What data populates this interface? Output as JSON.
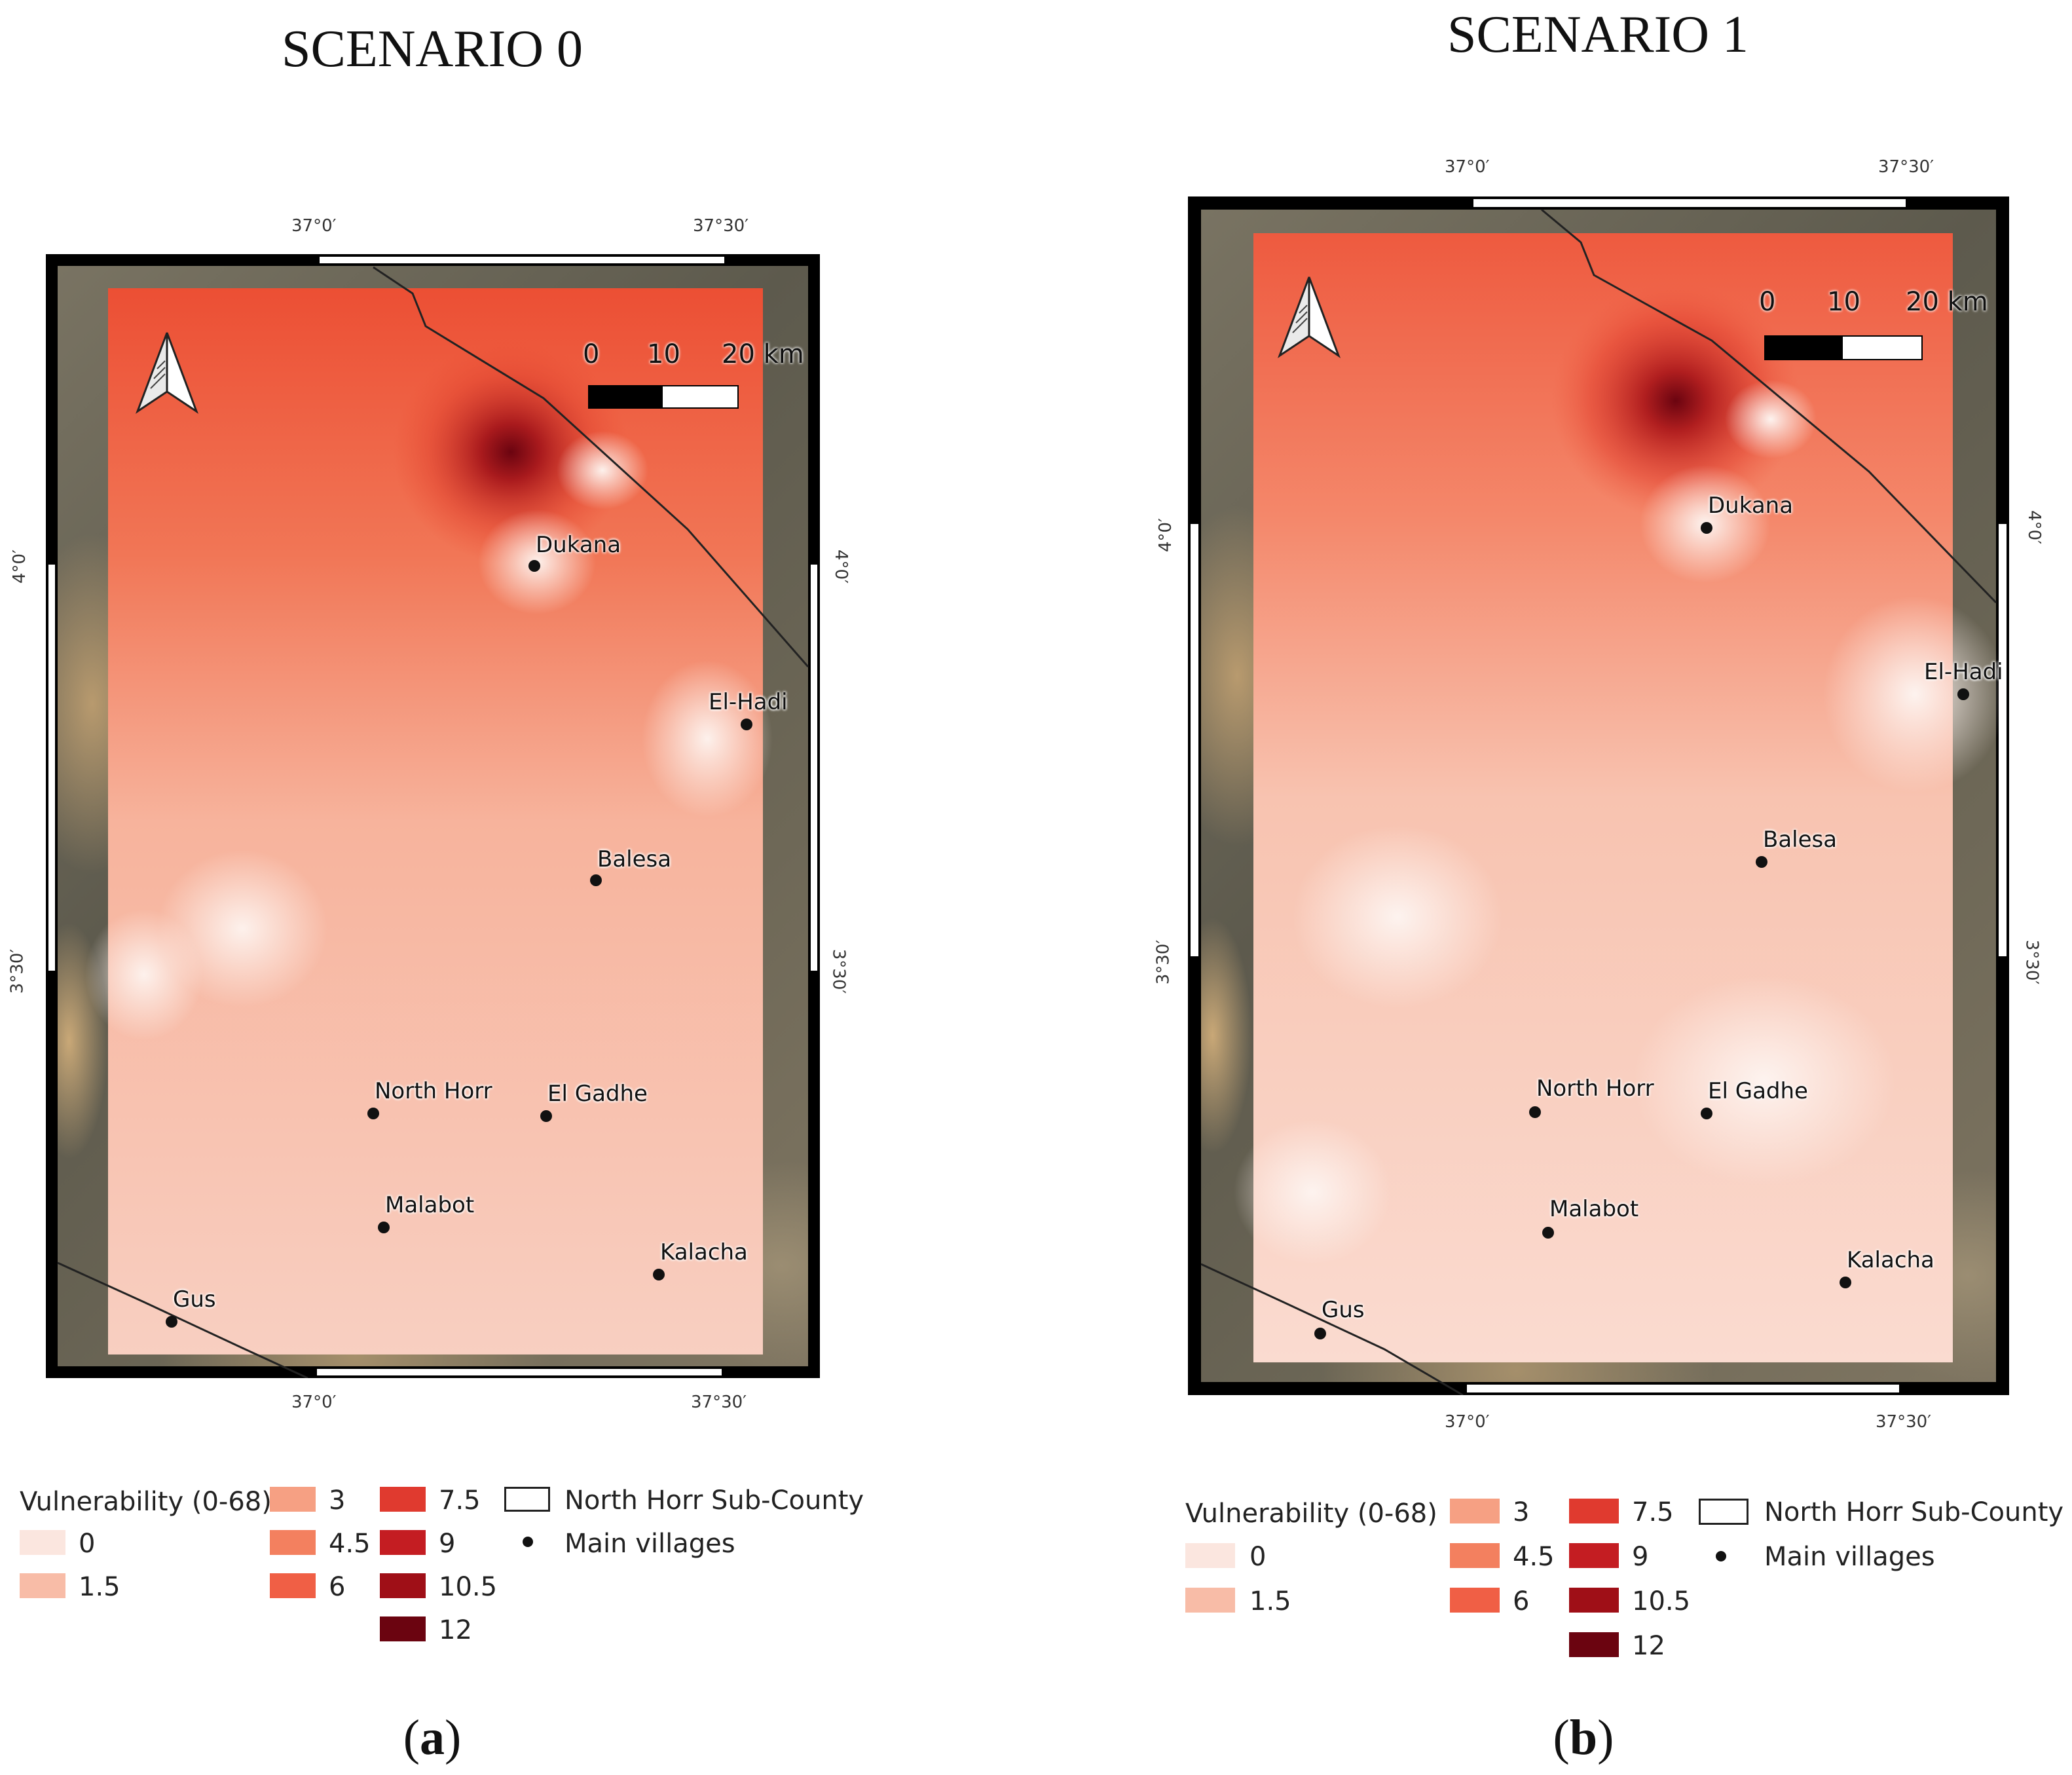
{
  "panels": [
    {
      "title": "SCENARIO 0",
      "caption_letter": "a",
      "coords": {
        "lon_left": "37°0′",
        "lon_right": "37°30′",
        "lat_top": "4°0′",
        "lat_bottom": "3°30′"
      },
      "scalebar": {
        "zero": "0",
        "mid": "10",
        "end": "20 km"
      },
      "villages": [
        "Dukana",
        "El-Hadi",
        "Balesa",
        "North Horr",
        "El Gadhe",
        "Malabot",
        "Kalacha",
        "Gus"
      ]
    },
    {
      "title": "SCENARIO 1",
      "caption_letter": "b",
      "coords": {
        "lon_left": "37°0′",
        "lon_right": "37°30′",
        "lat_top": "4°0′",
        "lat_bottom": "3°30′"
      },
      "scalebar": {
        "zero": "0",
        "mid": "10",
        "end": "20 km"
      },
      "villages": [
        "Dukana",
        "El-Hadi",
        "Balesa",
        "North Horr",
        "El Gadhe",
        "Malabot",
        "Kalacha",
        "Gus"
      ]
    }
  ],
  "legend": {
    "title": "Vulnerability (0-68)",
    "classes": [
      {
        "label": "0",
        "color": "#fbe6df"
      },
      {
        "label": "1.5",
        "color": "#f8bca7"
      },
      {
        "label": "3",
        "color": "#f6a083"
      },
      {
        "label": "4.5",
        "color": "#f3805f"
      },
      {
        "label": "6",
        "color": "#f05f45"
      },
      {
        "label": "7.5",
        "color": "#e03a2f"
      },
      {
        "label": "9",
        "color": "#c41d22"
      },
      {
        "label": "10.5",
        "color": "#9f0f17"
      },
      {
        "label": "12",
        "color": "#6b0410"
      }
    ],
    "boundary_label": "North Horr Sub-County",
    "villages_label": "Main villages"
  },
  "colors": {
    "heat_dark": "#7a0c10",
    "heat_mid": "#ee5a3f",
    "heat_light": "#fbe2d8",
    "frame": "#000000"
  },
  "icons": [
    "north-arrow-icon"
  ]
}
